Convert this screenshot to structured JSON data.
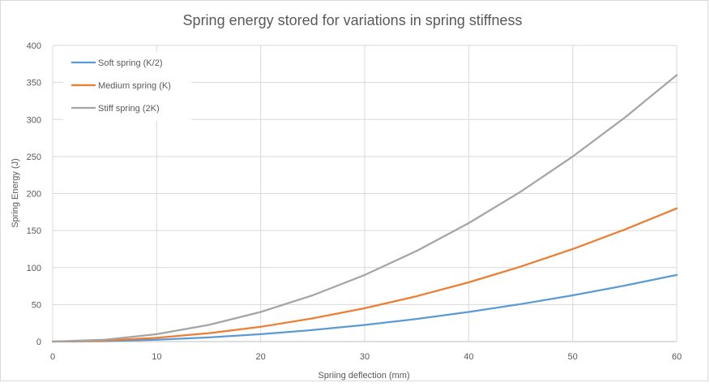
{
  "chart_data": {
    "type": "line",
    "title": "Spring energy stored for variations in spring stiffness",
    "xlabel": "Spriing deflection (mm)",
    "ylabel": "Spring Energy (J)",
    "xlim": [
      0,
      60
    ],
    "ylim": [
      0,
      400
    ],
    "x_ticks": [
      "0",
      "10",
      "20",
      "30",
      "40",
      "50",
      "60"
    ],
    "y_ticks": [
      "0",
      "50",
      "100",
      "150",
      "200",
      "250",
      "300",
      "350",
      "400"
    ],
    "grid": true,
    "legend_position": "top-left",
    "x": [
      0,
      5,
      10,
      15,
      20,
      25,
      30,
      35,
      40,
      45,
      50,
      55,
      60
    ],
    "series": [
      {
        "name": "Soft spring (K/2)",
        "color": "#5b9bd5",
        "values": [
          0,
          0.6,
          2.5,
          5.6,
          10,
          15.6,
          22.5,
          30.6,
          40,
          50.6,
          62.5,
          75.6,
          90
        ]
      },
      {
        "name": "Medium spring (K)",
        "color": "#ed7d31",
        "values": [
          0,
          1.3,
          5,
          11.3,
          20,
          31.3,
          45,
          61.3,
          80,
          101.3,
          125,
          151.3,
          180
        ]
      },
      {
        "name": "Stiff spring (2K)",
        "color": "#a5a5a5",
        "values": [
          0,
          2.5,
          10,
          22.5,
          40,
          62.5,
          90,
          122.5,
          160,
          202.5,
          250,
          302.5,
          360
        ]
      }
    ]
  }
}
